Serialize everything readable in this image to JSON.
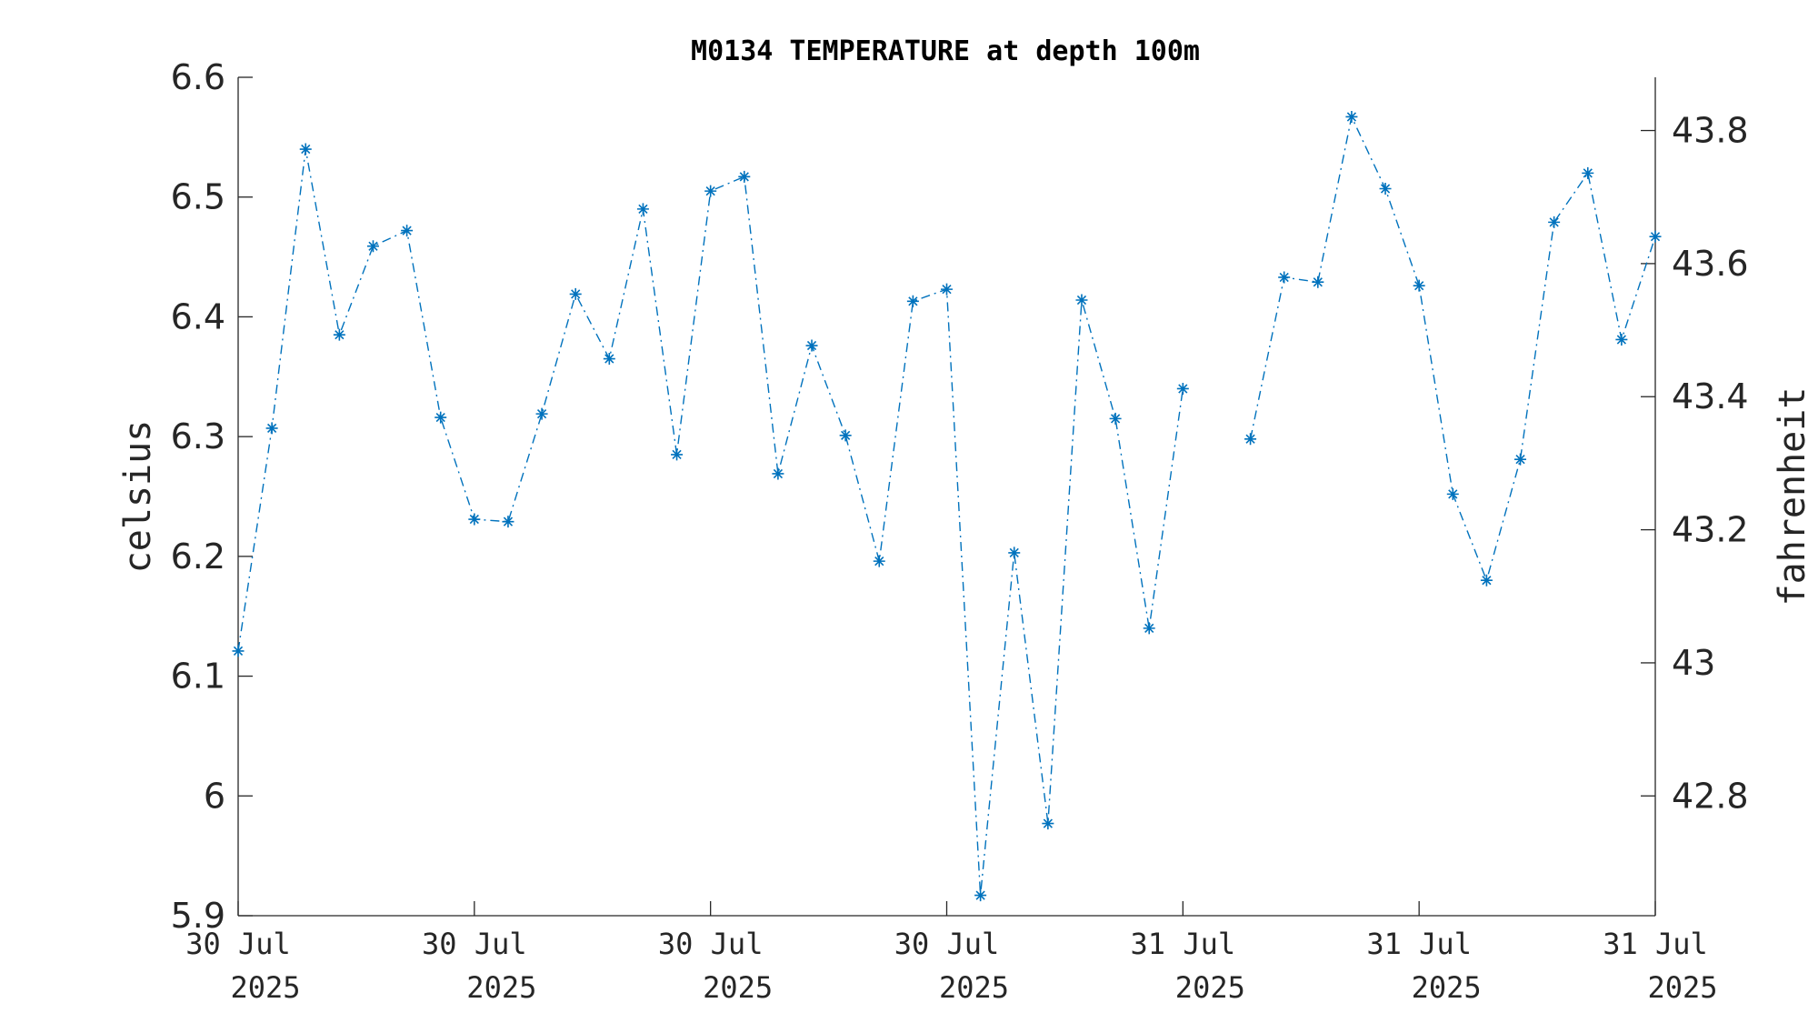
{
  "chart_data": {
    "type": "line",
    "title": "M0134 TEMPERATURE at depth 100m",
    "ylabel": "celsius",
    "y2label": "fahrenheit",
    "ylim": [
      5.9,
      6.6
    ],
    "y2lim": [
      42.62,
      43.88
    ],
    "yticks": [
      "5.9",
      "6",
      "6.1",
      "6.2",
      "6.3",
      "6.4",
      "6.5",
      "6.6"
    ],
    "y2ticks": [
      "42.8",
      "43",
      "43.2",
      "43.4",
      "43.6",
      "43.8"
    ],
    "xticks": [
      {
        "line1": "30 Jul",
        "line2": "2025"
      },
      {
        "line1": "30 Jul",
        "line2": "2025"
      },
      {
        "line1": "30 Jul",
        "line2": "2025"
      },
      {
        "line1": "30 Jul",
        "line2": "2025"
      },
      {
        "line1": "31 Jul",
        "line2": "2025"
      },
      {
        "line1": "31 Jul",
        "line2": "2025"
      },
      {
        "line1": "31 Jul",
        "line2": "2025"
      }
    ],
    "xlim_hours": [
      0,
      42
    ],
    "x_unit": "hours",
    "grid": false,
    "series_color": "#0072BD",
    "series": [
      {
        "x": [
          0,
          1,
          2,
          3,
          4,
          5,
          6,
          7,
          8,
          9,
          10,
          11,
          12,
          13,
          14,
          15,
          16,
          17,
          18,
          19,
          20,
          21,
          22,
          23,
          24,
          25,
          26,
          27,
          28,
          29,
          30,
          31,
          32,
          33,
          34,
          35,
          36,
          37,
          38,
          39,
          40,
          41,
          42
        ],
        "values": [
          6.121,
          6.307,
          6.54,
          6.385,
          6.459,
          6.472,
          6.316,
          6.231,
          6.229,
          6.319,
          6.419,
          6.365,
          6.49,
          6.285,
          6.505,
          6.517,
          6.269,
          6.376,
          6.301,
          6.196,
          6.413,
          6.423,
          5.917,
          6.203,
          5.977,
          6.414,
          6.315,
          6.14,
          6.34,
          null,
          6.298,
          6.433,
          6.429,
          6.567,
          6.507,
          6.426,
          6.252,
          6.18,
          6.281,
          6.479,
          6.52,
          6.381,
          6.467
        ]
      }
    ]
  }
}
